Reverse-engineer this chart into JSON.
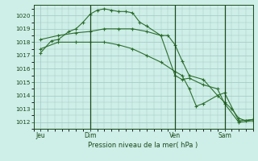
{
  "background_color": "#ceeee8",
  "grid_color": "#a0c8c0",
  "line_color": "#2d6e2d",
  "marker_color": "#2d6e2d",
  "ylabel_values": [
    1012,
    1013,
    1014,
    1015,
    1016,
    1017,
    1018,
    1019,
    1020
  ],
  "ylim": [
    1011.5,
    1020.8
  ],
  "xlabel": "Pression niveau de la mer( hPa )",
  "xtick_labels": [
    "Jeu",
    "Dim",
    "Ven",
    "Sam"
  ],
  "xtick_positions": [
    2,
    16,
    40,
    54
  ],
  "xlim": [
    0,
    62
  ],
  "vline_positions": [
    16,
    40,
    54
  ],
  "series": [
    {
      "x": [
        2,
        5,
        7,
        10,
        12,
        14,
        16,
        18,
        20,
        22,
        24,
        26,
        28,
        30,
        32,
        36,
        38,
        40,
        42,
        44,
        48,
        52,
        54,
        56,
        58,
        60,
        62
      ],
      "y": [
        1017.2,
        1018.1,
        1018.2,
        1018.8,
        1019.0,
        1019.5,
        1020.1,
        1020.4,
        1020.5,
        1020.4,
        1020.3,
        1020.3,
        1020.2,
        1019.5,
        1019.2,
        1018.5,
        1018.5,
        1017.8,
        1016.6,
        1015.5,
        1015.2,
        1014.0,
        1013.5,
        1013.0,
        1012.3,
        1012.1,
        1012.2
      ]
    },
    {
      "x": [
        2,
        7,
        12,
        16,
        20,
        24,
        28,
        32,
        36,
        40,
        42,
        44,
        48,
        52,
        54,
        58,
        62
      ],
      "y": [
        1018.2,
        1018.5,
        1018.7,
        1018.8,
        1019.0,
        1019.0,
        1019.0,
        1018.8,
        1018.5,
        1015.5,
        1015.2,
        1015.3,
        1014.8,
        1014.5,
        1013.4,
        1012.0,
        1012.1
      ]
    },
    {
      "x": [
        2,
        7,
        12,
        16,
        20,
        24,
        28,
        32,
        36,
        40,
        42,
        44,
        46,
        48,
        52,
        54,
        58,
        62
      ],
      "y": [
        1017.5,
        1018.0,
        1018.0,
        1018.0,
        1018.0,
        1017.8,
        1017.5,
        1017.0,
        1016.5,
        1015.8,
        1015.5,
        1014.5,
        1013.2,
        1013.4,
        1014.0,
        1014.2,
        1012.1,
        1012.2
      ]
    }
  ]
}
